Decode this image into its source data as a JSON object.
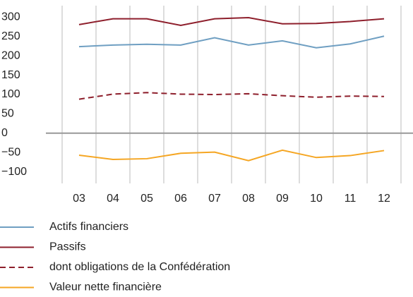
{
  "chart_data": {
    "type": "line",
    "categories": [
      "03",
      "04",
      "05",
      "06",
      "07",
      "08",
      "09",
      "10",
      "11",
      "12"
    ],
    "series": [
      {
        "name": "Actifs financiers",
        "color": "#6f9fc2",
        "values": [
          224,
          228,
          230,
          228,
          247,
          228,
          239,
          221,
          231,
          251
        ]
      },
      {
        "name": "Passifs",
        "color": "#8e1f2c",
        "values": [
          281,
          296,
          296,
          279,
          296,
          299,
          283,
          284,
          289,
          296
        ]
      },
      {
        "name": "dont obligations de la Confédération",
        "color": "#8e1f2c",
        "dash": true,
        "values": [
          88,
          101,
          105,
          101,
          100,
          102,
          97,
          93,
          96,
          95
        ]
      },
      {
        "name": "Valeur nette financière",
        "color": "#f5a623",
        "values": [
          -57,
          -68,
          -66,
          -52,
          -49,
          -71,
          -44,
          -63,
          -58,
          -45
        ]
      }
    ],
    "ylim": [
      -130,
      330
    ],
    "yticks": [
      {
        "value": -100,
        "label": "−100"
      },
      {
        "value": -50,
        "label": "−50"
      },
      0,
      50,
      100,
      150,
      200,
      250,
      300
    ]
  }
}
